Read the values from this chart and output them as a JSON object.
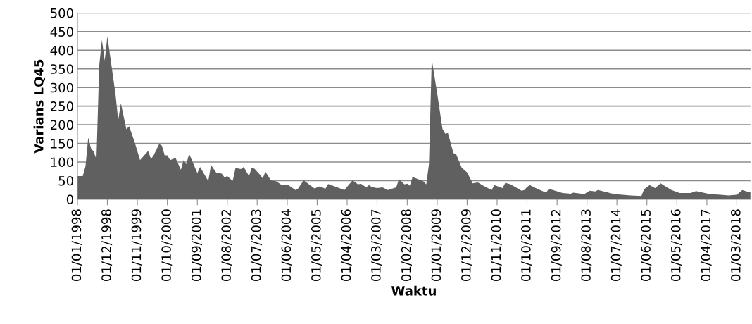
{
  "chart_data": {
    "type": "area",
    "xlabel": "Waktu",
    "ylabel": "Varians LQ45",
    "x": [
      "1998-01",
      "1998-03",
      "1998-04",
      "1998-05",
      "1998-06",
      "1998-07",
      "1998-08",
      "1998-09",
      "1998-10",
      "1998-11",
      "1998-12",
      "1999-03",
      "1999-04",
      "1999-05",
      "1999-07",
      "1999-08",
      "1999-10",
      "1999-12",
      "2000-03",
      "2000-04",
      "2000-05",
      "2000-07",
      "2000-08",
      "2000-09",
      "2000-10",
      "2000-11",
      "2001-01",
      "2001-03",
      "2001-04",
      "2001-05",
      "2001-06",
      "2001-09",
      "2001-10",
      "2002-01",
      "2002-02",
      "2002-04",
      "2002-06",
      "2002-07",
      "2002-08",
      "2002-10",
      "2002-11",
      "2003-01",
      "2003-02",
      "2003-04",
      "2003-05",
      "2003-06",
      "2003-08",
      "2003-09",
      "2003-10",
      "2003-12",
      "2004-02",
      "2004-04",
      "2004-06",
      "2004-09",
      "2004-10",
      "2004-12",
      "2005-04",
      "2005-06",
      "2005-08",
      "2005-09",
      "2005-12",
      "2006-03",
      "2006-06",
      "2006-08",
      "2006-09",
      "2006-11",
      "2006-12",
      "2007-01",
      "2007-03",
      "2007-05",
      "2007-07",
      "2007-10",
      "2007-11",
      "2008-01",
      "2008-02",
      "2008-03",
      "2008-04",
      "2008-08",
      "2008-09",
      "2008-10",
      "2008-11",
      "2009-01",
      "2009-03",
      "2009-04",
      "2009-05",
      "2009-07",
      "2009-08",
      "2009-10",
      "2009-12",
      "2010-02",
      "2010-04",
      "2010-06",
      "2010-09",
      "2010-10",
      "2011-01",
      "2011-02",
      "2011-04",
      "2011-08",
      "2011-09",
      "2011-10",
      "2011-11",
      "2012-02",
      "2012-05",
      "2012-06",
      "2012-11",
      "2013-02",
      "2013-03",
      "2013-07",
      "2013-09",
      "2013-11",
      "2013-12",
      "2014-06",
      "2014-12",
      "2015-04",
      "2015-05",
      "2015-07",
      "2015-09",
      "2015-11",
      "2016-03",
      "2016-06",
      "2016-10",
      "2016-12",
      "2017-05",
      "2017-09",
      "2017-12",
      "2018-03",
      "2018-05",
      "2018-07",
      "2018-08"
    ],
    "series": [
      {
        "color": "#606060",
        "values": [
          62,
          62,
          89,
          165,
          137,
          128,
          107,
          359,
          428,
          372,
          437,
          284,
          212,
          258,
          188,
          196,
          154,
          105,
          130,
          108,
          118,
          148,
          144,
          118,
          118,
          105,
          111,
          79,
          105,
          94,
          122,
          70,
          87,
          49,
          92,
          71,
          69,
          59,
          62,
          49,
          84,
          81,
          87,
          62,
          85,
          82,
          66,
          56,
          74,
          51,
          48,
          38,
          40,
          25,
          29,
          51,
          29,
          35,
          28,
          41,
          33,
          25,
          51,
          40,
          42,
          32,
          38,
          33,
          30,
          32,
          25,
          32,
          54,
          40,
          42,
          36,
          60,
          48,
          40,
          95,
          376,
          284,
          189,
          176,
          178,
          124,
          121,
          85,
          72,
          43,
          45,
          36,
          25,
          38,
          30,
          44,
          40,
          23,
          25,
          33,
          38,
          27,
          18,
          28,
          17,
          15,
          18,
          14,
          23,
          21,
          25,
          14,
          10,
          9,
          27,
          38,
          30,
          43,
          25,
          17,
          17,
          22,
          14,
          12,
          10,
          12,
          25,
          20,
          19
        ]
      }
    ],
    "xlim": [
      "1998-01",
      "2018-08"
    ],
    "xticks": [
      {
        "value": "1998-01",
        "label": "01/01/1998"
      },
      {
        "value": "1998-12",
        "label": "01/12/1998"
      },
      {
        "value": "1999-11",
        "label": "01/11/1999"
      },
      {
        "value": "2000-10",
        "label": "01/10/2000"
      },
      {
        "value": "2001-09",
        "label": "01/09/2001"
      },
      {
        "value": "2002-08",
        "label": "01/08/2002"
      },
      {
        "value": "2003-07",
        "label": "01/07/2003"
      },
      {
        "value": "2004-06",
        "label": "01/06/2004"
      },
      {
        "value": "2005-05",
        "label": "01/05/2005"
      },
      {
        "value": "2006-04",
        "label": "01/04/2006"
      },
      {
        "value": "2007-03",
        "label": "01/03/2007"
      },
      {
        "value": "2008-02",
        "label": "01/02/2008"
      },
      {
        "value": "2009-01",
        "label": "01/01/2009"
      },
      {
        "value": "2009-12",
        "label": "01/12/2009"
      },
      {
        "value": "2010-11",
        "label": "01/11/2010"
      },
      {
        "value": "2011-10",
        "label": "01/10/2011"
      },
      {
        "value": "2012-09",
        "label": "01/09/2012"
      },
      {
        "value": "2013-08",
        "label": "01/08/2013"
      },
      {
        "value": "2014-07",
        "label": "01/07/2014"
      },
      {
        "value": "2015-06",
        "label": "01/06/2015"
      },
      {
        "value": "2016-05",
        "label": "01/05/2016"
      },
      {
        "value": "2017-04",
        "label": "01/04/2017"
      },
      {
        "value": "2018-03",
        "label": "01/03/2018"
      }
    ],
    "ylim": [
      0,
      500
    ],
    "yticks": [
      0,
      50,
      100,
      150,
      200,
      250,
      300,
      350,
      400,
      450,
      500
    ],
    "grid": "y"
  }
}
